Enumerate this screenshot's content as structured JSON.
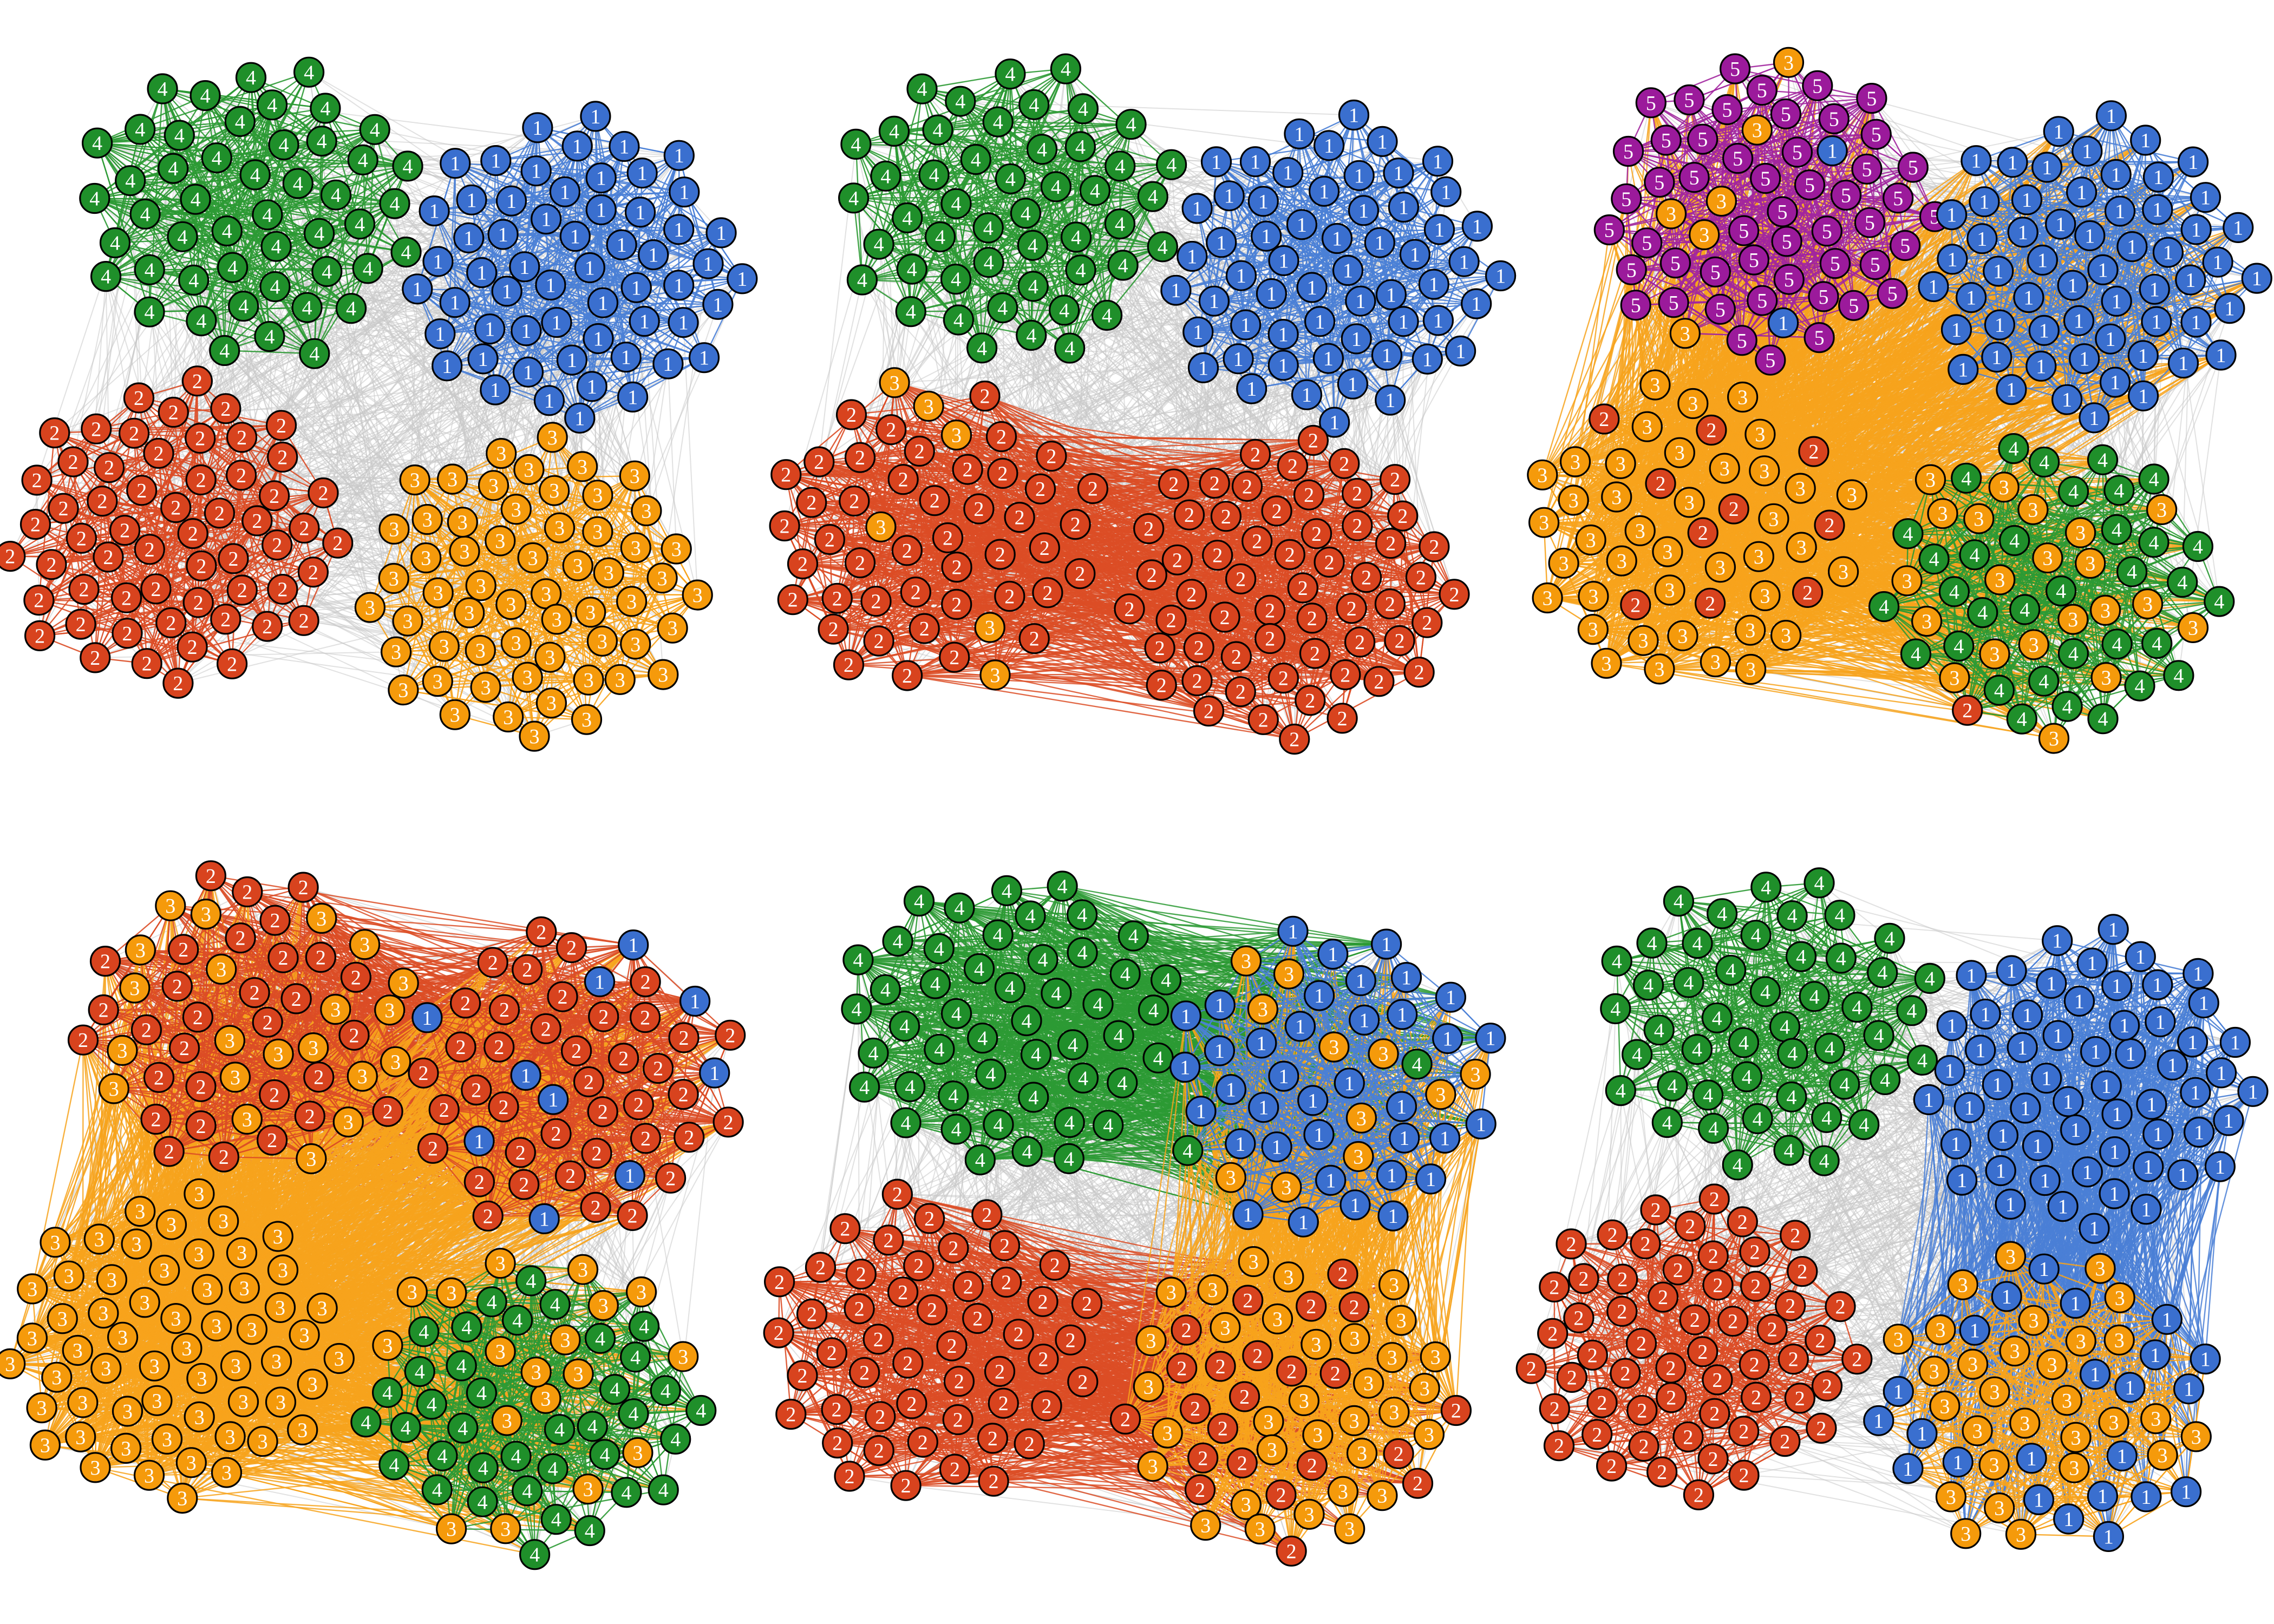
{
  "community_colors": {
    "1": "#3a6fcf",
    "2": "#d8431e",
    "3": "#f59a0b",
    "4": "#1f8f2a",
    "5": "#9b1a9b"
  },
  "label_colors": {
    "1": "#ffffff",
    "2": "#ffffff",
    "3": "#ffffff",
    "4": "#ffffff",
    "5": "#ffffff"
  },
  "intra_edge_colors": {
    "1": "#4a7fd6",
    "2": "#dc4d26",
    "3": "#f7a31c",
    "4": "#2c9a34",
    "5": "#a2269f"
  },
  "inter_edge_color": "#c8c8c8",
  "panels": [
    {
      "id": "top-left",
      "groups": [
        {
          "label": "4",
          "count": 48,
          "mix": []
        },
        {
          "label": "1",
          "count": 58,
          "mix": []
        },
        {
          "label": "2",
          "count": 58,
          "mix": []
        },
        {
          "label": "3",
          "count": 58,
          "mix": []
        }
      ],
      "bridges": []
    },
    {
      "id": "top-middle",
      "groups": [
        {
          "label": "4",
          "count": 48,
          "mix": []
        },
        {
          "label": "1",
          "count": 58,
          "mix": []
        },
        {
          "label": "2",
          "count": 50,
          "mix": [
            {
              "label": "3",
              "share": 0.08
            }
          ]
        },
        {
          "label": "2",
          "count": 58,
          "mix": []
        }
      ],
      "bridges": [
        {
          "from": 2,
          "to": 3,
          "label": "2"
        }
      ]
    },
    {
      "id": "top-right",
      "groups": [
        {
          "label": "5",
          "count": 58,
          "mix": [
            {
              "label": "3",
              "share": 0.22
            },
            {
              "label": "1",
              "share": 0.1
            }
          ]
        },
        {
          "label": "1",
          "count": 58,
          "mix": []
        },
        {
          "label": "3",
          "count": 50,
          "mix": [
            {
              "label": "2",
              "share": 0.18
            }
          ]
        },
        {
          "label": "4",
          "count": 56,
          "mix": [
            {
              "label": "3",
              "share": 0.3
            },
            {
              "label": "2",
              "share": 0.04
            }
          ]
        }
      ],
      "bridges": [
        {
          "from": 2,
          "to": 3,
          "label": "3"
        },
        {
          "from": 2,
          "to": 1,
          "label": "3"
        },
        {
          "from": 0,
          "to": 2,
          "label": "3"
        }
      ]
    },
    {
      "id": "bottom-left",
      "groups": [
        {
          "label": "2",
          "count": 52,
          "mix": [
            {
              "label": "3",
              "share": 0.42
            }
          ]
        },
        {
          "label": "2",
          "count": 50,
          "mix": [
            {
              "label": "1",
              "share": 0.18
            }
          ]
        },
        {
          "label": "3",
          "count": 58,
          "mix": []
        },
        {
          "label": "4",
          "count": 56,
          "mix": [
            {
              "label": "3",
              "share": 0.28
            }
          ]
        }
      ],
      "bridges": [
        {
          "from": 0,
          "to": 1,
          "label": "2"
        },
        {
          "from": 0,
          "to": 2,
          "label": "3"
        },
        {
          "from": 2,
          "to": 3,
          "label": "3"
        },
        {
          "from": 2,
          "to": 1,
          "label": "3"
        }
      ]
    },
    {
      "id": "bottom-middle",
      "groups": [
        {
          "label": "4",
          "count": 48,
          "mix": []
        },
        {
          "label": "1",
          "count": 50,
          "mix": [
            {
              "label": "3",
              "share": 0.25
            },
            {
              "label": "4",
              "share": 0.14
            }
          ]
        },
        {
          "label": "2",
          "count": 50,
          "mix": []
        },
        {
          "label": "3",
          "count": 56,
          "mix": [
            {
              "label": "2",
              "share": 0.4
            }
          ]
        }
      ],
      "bridges": [
        {
          "from": 0,
          "to": 1,
          "label": "4"
        },
        {
          "from": 2,
          "to": 3,
          "label": "2"
        },
        {
          "from": 3,
          "to": 1,
          "label": "3"
        }
      ]
    },
    {
      "id": "bottom-right",
      "groups": [
        {
          "label": "4",
          "count": 48,
          "mix": []
        },
        {
          "label": "1",
          "count": 58,
          "mix": []
        },
        {
          "label": "2",
          "count": 58,
          "mix": []
        },
        {
          "label": "3",
          "count": 52,
          "mix": [
            {
              "label": "1",
              "share": 0.4
            }
          ]
        }
      ],
      "bridges": [
        {
          "from": 1,
          "to": 3,
          "label": "1"
        }
      ]
    }
  ]
}
